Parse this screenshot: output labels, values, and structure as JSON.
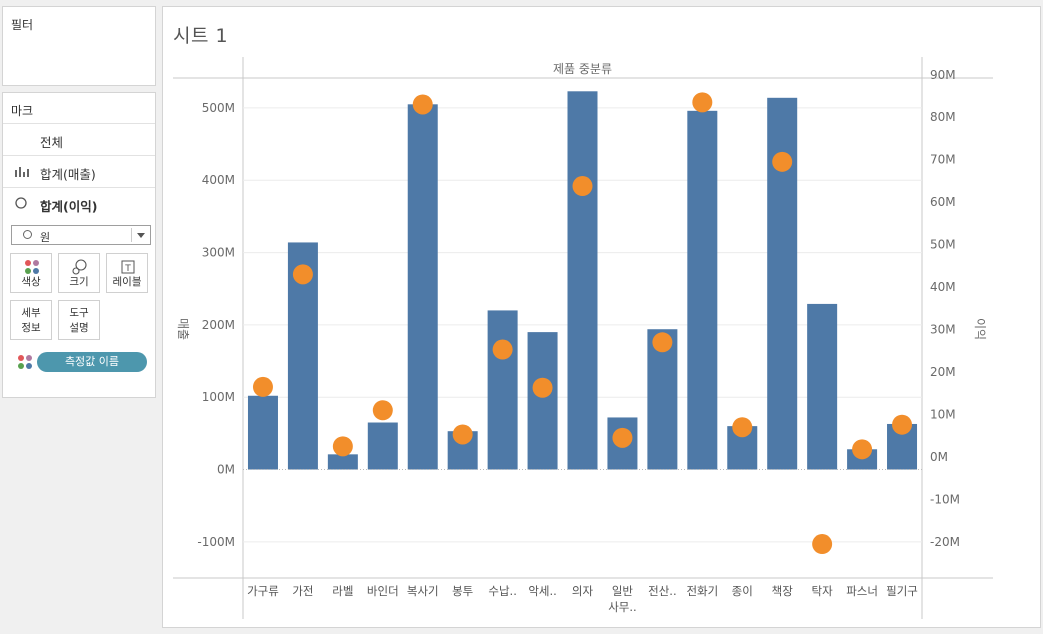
{
  "filters": {
    "title": "필터"
  },
  "marks": {
    "title": "마크",
    "rows": [
      {
        "label": "전체",
        "icon": "none"
      },
      {
        "label": "합계(매출)",
        "icon": "bar-chart-icon"
      },
      {
        "label": "합계(이익)",
        "icon": "circle-icon"
      }
    ],
    "mark_type": "원",
    "buttons": [
      {
        "label": "색상",
        "icon": "color-dots-icon"
      },
      {
        "label": "크기",
        "icon": "size-icon"
      },
      {
        "label": "레이블",
        "icon": "label-icon"
      }
    ],
    "buttons2": [
      {
        "label": "세부\n정보"
      },
      {
        "label": "도구\n설명"
      }
    ],
    "pill": "측정값 이름"
  },
  "sheet": {
    "title": "시트 1"
  },
  "colors": {
    "bar": "#4e79a7",
    "dot": "#f28e2b"
  },
  "chart_data": {
    "type": "bar+scatter",
    "header": "제품 중분류",
    "left_axis_label": "매출",
    "right_axis_label": "이익",
    "left_ticks": [
      "-100M",
      "0M",
      "100M",
      "200M",
      "300M",
      "400M",
      "500M"
    ],
    "right_ticks": [
      "-20M",
      "-10M",
      "0M",
      "10M",
      "20M",
      "30M",
      "40M",
      "50M",
      "60M",
      "70M",
      "80M",
      "90M"
    ],
    "categories": [
      "가구류",
      "가전",
      "라벨",
      "바인더",
      "복사기",
      "봉투",
      "수납..",
      "악세..",
      "의자",
      "일반\n사무..",
      "전산..",
      "전화기",
      "종이",
      "책장",
      "탁자",
      "파스너",
      "필기구"
    ],
    "sales_values": [
      102000000,
      314000000,
      21000000,
      65000000,
      505000000,
      53000000,
      220000000,
      190000000,
      523000000,
      72000000,
      194000000,
      496000000,
      60000000,
      514000000,
      229000000,
      28000000,
      63000000
    ],
    "profit_values": [
      16500000,
      43000000,
      2500000,
      11000000,
      83000000,
      5300000,
      25300000,
      16300000,
      63800000,
      4500000,
      27000000,
      83500000,
      7000000,
      69500000,
      -20500000,
      1800000,
      7600000
    ],
    "left_range": [
      -150000000,
      540000000
    ],
    "right_range": [
      -28500000,
      89000000
    ]
  }
}
